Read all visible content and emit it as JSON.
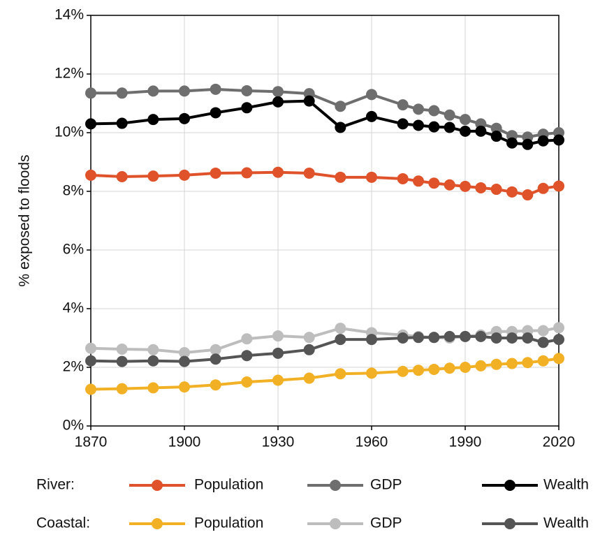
{
  "chart_data": {
    "type": "line",
    "y_label": "% exposed to floods",
    "x": [
      1870,
      1880,
      1890,
      1900,
      1910,
      1920,
      1930,
      1940,
      1950,
      1960,
      1970,
      1975,
      1980,
      1985,
      1990,
      1995,
      2000,
      2005,
      2010,
      2015,
      2020
    ],
    "xlim": [
      1870,
      2020
    ],
    "xticks": [
      1870,
      1900,
      1930,
      1960,
      1990,
      2020
    ],
    "ylim": [
      0,
      14
    ],
    "yticks": [
      {
        "value": 0,
        "label": "0%"
      },
      {
        "value": 2,
        "label": "2%"
      },
      {
        "value": 4,
        "label": "4%"
      },
      {
        "value": 6,
        "label": "6%"
      },
      {
        "value": 8,
        "label": "8%"
      },
      {
        "value": 10,
        "label": "10%"
      },
      {
        "value": 12,
        "label": "12%"
      },
      {
        "value": 14,
        "label": "14%"
      }
    ],
    "grid": true,
    "series_groups": [
      {
        "label": "River:",
        "series": [
          {
            "name": "Population",
            "color": "#e0532a",
            "values": [
              8.55,
              8.5,
              8.52,
              8.55,
              8.62,
              8.63,
              8.65,
              8.62,
              8.48,
              8.48,
              8.43,
              8.35,
              8.28,
              8.22,
              8.17,
              8.12,
              8.07,
              7.98,
              7.88,
              8.1,
              8.18
            ]
          },
          {
            "name": "GDP",
            "color": "#6e6e6e",
            "values": [
              11.35,
              11.35,
              11.42,
              11.42,
              11.48,
              11.43,
              11.4,
              11.33,
              10.9,
              11.3,
              10.95,
              10.8,
              10.75,
              10.6,
              10.45,
              10.3,
              10.15,
              9.9,
              9.85,
              9.95,
              10.0
            ]
          },
          {
            "name": "Wealth",
            "color": "#000000",
            "values": [
              10.3,
              10.32,
              10.45,
              10.48,
              10.68,
              10.85,
              11.05,
              11.08,
              10.18,
              10.55,
              10.3,
              10.25,
              10.2,
              10.18,
              10.05,
              10.05,
              9.88,
              9.65,
              9.6,
              9.72,
              9.75
            ]
          }
        ]
      },
      {
        "label": "Coastal:",
        "series": [
          {
            "name": "Population",
            "color": "#f2b125",
            "values": [
              1.25,
              1.27,
              1.3,
              1.33,
              1.4,
              1.5,
              1.56,
              1.63,
              1.78,
              1.8,
              1.86,
              1.9,
              1.93,
              1.97,
              2.0,
              2.05,
              2.1,
              2.13,
              2.16,
              2.22,
              2.3
            ]
          },
          {
            "name": "GDP",
            "color": "#bdbdbd",
            "values": [
              2.65,
              2.62,
              2.6,
              2.5,
              2.6,
              2.97,
              3.07,
              3.02,
              3.33,
              3.18,
              3.1,
              3.05,
              3.02,
              3.0,
              3.05,
              3.1,
              3.22,
              3.22,
              3.25,
              3.25,
              3.35
            ]
          },
          {
            "name": "Wealth",
            "color": "#555555",
            "values": [
              2.22,
              2.2,
              2.22,
              2.2,
              2.28,
              2.4,
              2.48,
              2.6,
              2.95,
              2.95,
              3.0,
              3.02,
              3.02,
              3.05,
              3.05,
              3.05,
              3.0,
              3.0,
              3.0,
              2.85,
              2.95
            ]
          }
        ]
      }
    ]
  }
}
